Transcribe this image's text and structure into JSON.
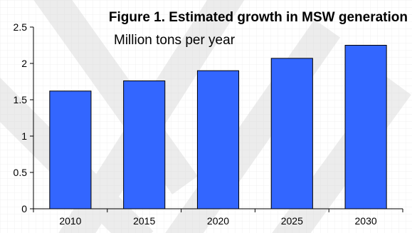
{
  "chart_data": {
    "type": "bar",
    "title": "Figure 1. Estimated growth in MSW generation",
    "subtitle": "Million tons per year",
    "categories": [
      "2010",
      "2015",
      "2020",
      "2025",
      "2030"
    ],
    "values": [
      1.62,
      1.76,
      1.9,
      2.07,
      2.25
    ],
    "ylim": [
      0,
      2.5
    ],
    "yticks": [
      "0",
      "0.5",
      "1",
      "1.5",
      "2",
      "2.5"
    ],
    "xlabel": "",
    "ylabel": "",
    "grid": false,
    "colors": {
      "bar": "#3366ff",
      "bar_stroke": "#000000",
      "axis": "#000000"
    }
  }
}
